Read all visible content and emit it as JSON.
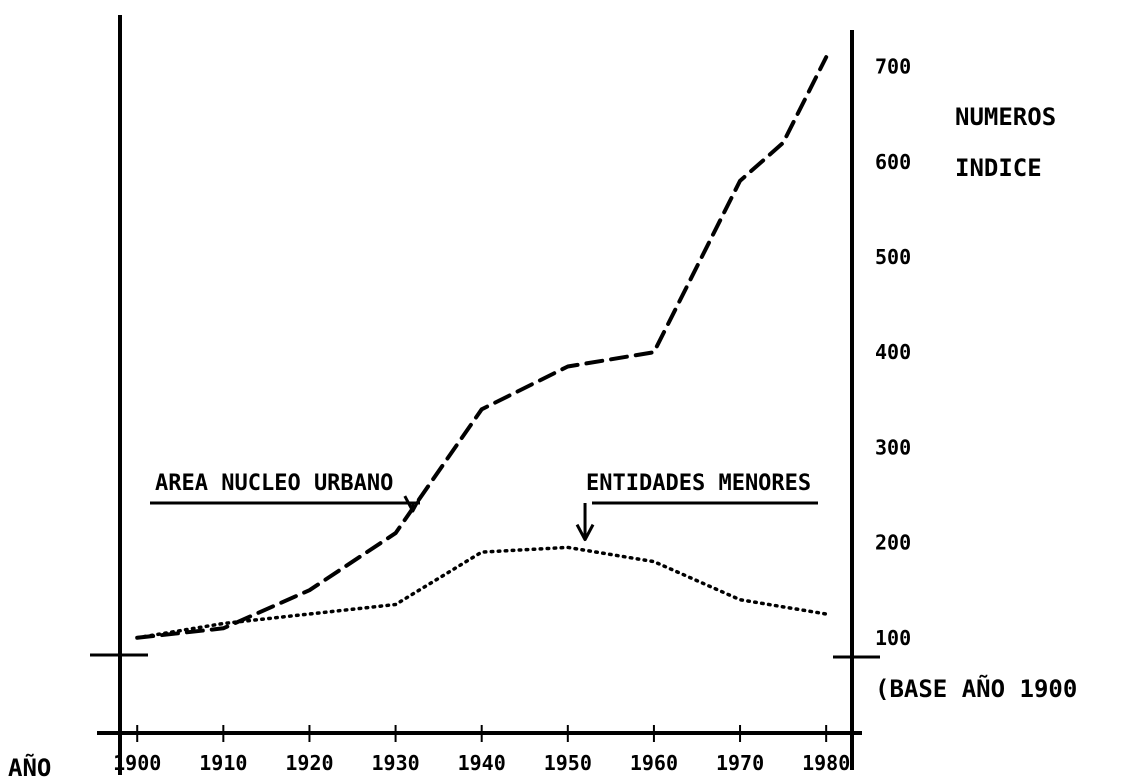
{
  "chart_data": {
    "type": "line",
    "title": "",
    "xlabel": "AÑO",
    "ylabel_lines": [
      "NUMEROS",
      "INDICE"
    ],
    "base_note": "(BASE AÑO 1900",
    "x": [
      1900,
      1910,
      1920,
      1930,
      1940,
      1950,
      1960,
      1970,
      1980
    ],
    "x_tick_labels": [
      "1900",
      "1910",
      "1920",
      "1930",
      "1940",
      "1950",
      "1960",
      "1970",
      "1980"
    ],
    "y_ticks": [
      100,
      200,
      300,
      400,
      500,
      600,
      700
    ],
    "y_tick_labels": [
      "100",
      "200",
      "300",
      "400",
      "500",
      "600",
      "700"
    ],
    "xlim": [
      1898,
      1983
    ],
    "ylim": [
      0,
      770
    ],
    "grid": false,
    "series": [
      {
        "name": "AREA NUCLEO URBANO",
        "style": "dashed",
        "points": [
          [
            1900,
            100
          ],
          [
            1910,
            110
          ],
          [
            1920,
            150
          ],
          [
            1930,
            210
          ],
          [
            1940,
            340
          ],
          [
            1950,
            385
          ],
          [
            1960,
            400
          ],
          [
            1970,
            580
          ],
          [
            1975,
            620
          ],
          [
            1980,
            710
          ]
        ]
      },
      {
        "name": "ENTIDADES MENORES",
        "style": "dotted",
        "points": [
          [
            1900,
            100
          ],
          [
            1910,
            115
          ],
          [
            1920,
            125
          ],
          [
            1930,
            135
          ],
          [
            1940,
            190
          ],
          [
            1950,
            195
          ],
          [
            1960,
            180
          ],
          [
            1970,
            140
          ],
          [
            1980,
            125
          ]
        ]
      }
    ],
    "annotations": [
      {
        "text": "AREA NUCLEO URBANO",
        "series": "AREA NUCLEO URBANO",
        "arrow_to": [
          1932,
          230
        ]
      },
      {
        "text": "ENTIDADES MENORES",
        "series": "ENTIDADES MENORES",
        "arrow_to": [
          1952,
          200
        ]
      }
    ],
    "colors": {
      "ink": "#000000",
      "background": "#ffffff"
    }
  }
}
